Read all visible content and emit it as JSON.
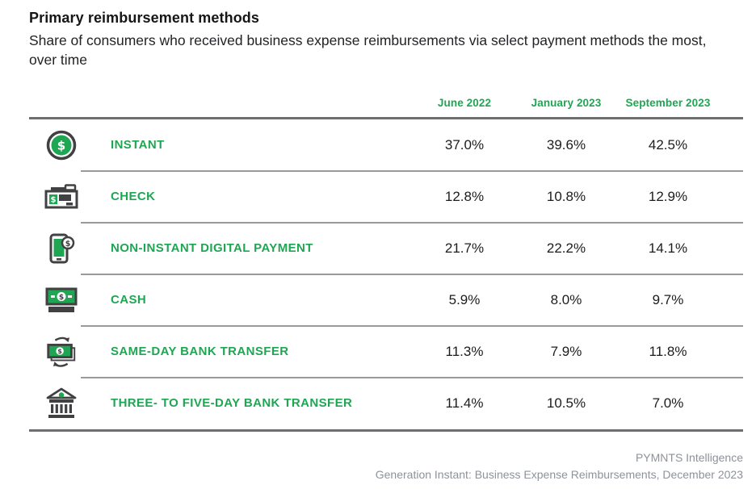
{
  "header": {
    "title": "Primary reimbursement methods",
    "subtitle": "Share of consumers who received business expense reimbursements via select payment methods the most, over time"
  },
  "table": {
    "columns": [
      "June 2022",
      "January 2023",
      "September 2023"
    ],
    "rows": [
      {
        "icon": "instant-coin-icon",
        "label": "INSTANT",
        "values": [
          "37.0%",
          "39.6%",
          "42.5%"
        ]
      },
      {
        "icon": "check-pen-icon",
        "label": "CHECK",
        "values": [
          "12.8%",
          "10.8%",
          "12.9%"
        ]
      },
      {
        "icon": "mobile-payment-icon",
        "label": "NON-INSTANT DIGITAL PAYMENT",
        "values": [
          "21.7%",
          "22.2%",
          "14.1%"
        ]
      },
      {
        "icon": "cash-bill-icon",
        "label": "CASH",
        "values": [
          "5.9%",
          "8.0%",
          "9.7%"
        ]
      },
      {
        "icon": "money-transfer-icon",
        "label": "SAME-DAY BANK TRANSFER",
        "values": [
          "11.3%",
          "7.9%",
          "11.8%"
        ]
      },
      {
        "icon": "bank-building-icon",
        "label": "THREE- TO FIVE-DAY BANK TRANSFER",
        "values": [
          "11.4%",
          "10.5%",
          "7.0%"
        ]
      }
    ]
  },
  "footer": {
    "source": "PYMNTS Intelligence",
    "report": "Generation Instant: Business Expense Reimbursements, December 2023"
  },
  "colors": {
    "green": "#1fa653",
    "icon_dark": "#414042",
    "text_dark": "#1c1c1e",
    "rule_heavy": "#6d6e71",
    "rule_light": "#97999b",
    "footer_gray": "#8d929b"
  },
  "chart_data": {
    "type": "table",
    "title": "Primary reimbursement methods",
    "subtitle": "Share of consumers who received business expense reimbursements via select payment methods the most, over time",
    "categories": [
      "June 2022",
      "January 2023",
      "September 2023"
    ],
    "unit": "percent",
    "series": [
      {
        "name": "Instant",
        "values": [
          37.0,
          39.6,
          42.5
        ]
      },
      {
        "name": "Check",
        "values": [
          12.8,
          10.8,
          12.9
        ]
      },
      {
        "name": "Non-instant digital payment",
        "values": [
          21.7,
          22.2,
          14.1
        ]
      },
      {
        "name": "Cash",
        "values": [
          5.9,
          8.0,
          9.7
        ]
      },
      {
        "name": "Same-day bank transfer",
        "values": [
          11.3,
          7.9,
          11.8
        ]
      },
      {
        "name": "Three- to five-day bank transfer",
        "values": [
          11.4,
          10.5,
          7.0
        ]
      }
    ],
    "source": "PYMNTS Intelligence, Generation Instant: Business Expense Reimbursements, December 2023"
  }
}
